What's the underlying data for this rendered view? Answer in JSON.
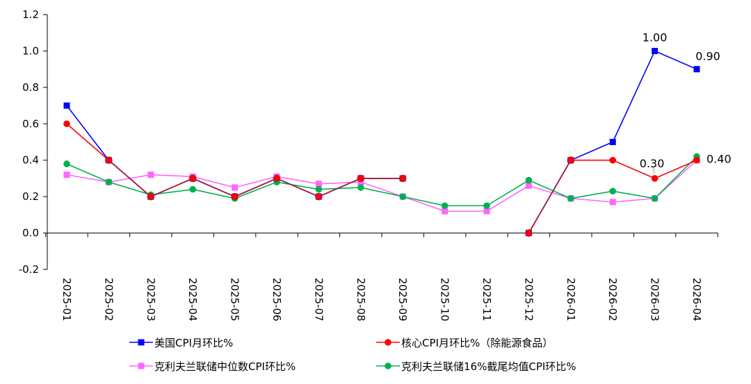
{
  "chart_data": {
    "type": "line",
    "title": "",
    "xlabel": "",
    "ylabel": "",
    "ylim": [
      -0.2,
      1.2
    ],
    "yticks": [
      "-0.2",
      "0.0",
      "0.2",
      "0.4",
      "0.6",
      "0.8",
      "1.0",
      "1.2"
    ],
    "grid": false,
    "legend_position": "bottom",
    "categories": [
      "2025-01",
      "2025-02",
      "2025-03",
      "2025-04",
      "2025-05",
      "2025-06",
      "2025-07",
      "2025-08",
      "2025-09",
      "2025-10",
      "2025-11",
      "2025-12",
      "2026-01",
      "2026-02",
      "2026-03",
      "2026-04"
    ],
    "series": [
      {
        "name": "美国CPI月环比%",
        "color": "#0000FF",
        "marker": "square",
        "values": [
          0.7,
          0.4,
          0.2,
          0.3,
          0.2,
          0.3,
          0.2,
          0.3,
          0.3,
          null,
          null,
          0.0,
          0.4,
          0.5,
          1.0,
          0.9
        ]
      },
      {
        "name": "核心CPI月环比%（除能源食品）",
        "color": "#FF0000",
        "marker": "circle",
        "values": [
          0.6,
          0.4,
          0.2,
          0.3,
          0.2,
          0.3,
          0.2,
          0.3,
          0.3,
          null,
          null,
          0.0,
          0.4,
          0.4,
          0.3,
          0.4
        ]
      },
      {
        "name": "克利夫兰联储中位数CPI环比%",
        "color": "#FF66FF",
        "marker": "square",
        "values": [
          0.32,
          0.28,
          0.32,
          0.31,
          0.25,
          0.31,
          0.27,
          0.28,
          0.2,
          0.12,
          0.12,
          0.26,
          0.19,
          0.17,
          0.19,
          0.4
        ]
      },
      {
        "name": "克利夫兰联储16%截尾均值CPI环比%",
        "color": "#00B050",
        "marker": "circle",
        "values": [
          0.38,
          0.28,
          0.21,
          0.24,
          0.19,
          0.28,
          0.24,
          0.25,
          0.2,
          0.15,
          0.15,
          0.29,
          0.19,
          0.23,
          0.19,
          0.42
        ]
      }
    ],
    "overlap_series_color": "#A0204A",
    "annotations": [
      {
        "text": "1.00",
        "category": "2026-03",
        "series": 0
      },
      {
        "text": "0.90",
        "category": "2026-04",
        "series": 0
      },
      {
        "text": "0.30",
        "category": "2026-03",
        "series": 1
      },
      {
        "text": "0.40",
        "category": "2026-04",
        "series": 1
      }
    ]
  }
}
